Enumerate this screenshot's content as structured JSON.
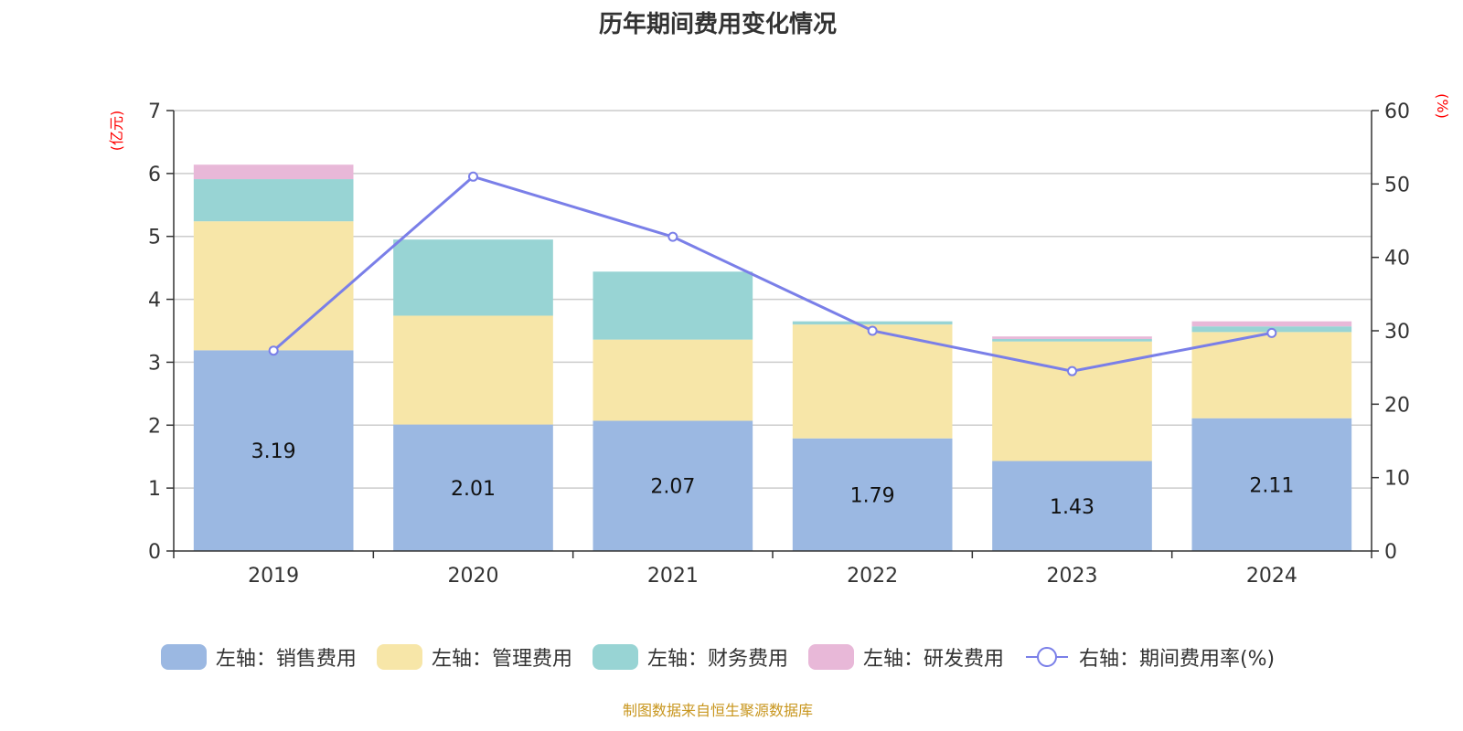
{
  "chart_data": {
    "type": "bar",
    "title": "历年期间费用变化情况",
    "categories": [
      "2019",
      "2020",
      "2021",
      "2022",
      "2023",
      "2024"
    ],
    "left_axis": {
      "unit_label": "(亿元)",
      "ylim": [
        0,
        7
      ],
      "ticks": [
        0,
        1,
        2,
        3,
        4,
        5,
        6,
        7
      ]
    },
    "right_axis": {
      "unit_label": "(%)",
      "ylim": [
        0,
        60
      ],
      "ticks": [
        0,
        10,
        20,
        30,
        40,
        50,
        60
      ]
    },
    "grid": true,
    "legend_position": "bottom",
    "series": [
      {
        "name": "左轴：销售费用",
        "type": "bar",
        "stack": true,
        "axis": "left",
        "color": "#9bb8e2",
        "values": [
          3.19,
          2.01,
          2.07,
          1.79,
          1.43,
          2.11
        ],
        "data_labels": [
          "3.19",
          "2.01",
          "2.07",
          "1.79",
          "1.43",
          "2.11"
        ]
      },
      {
        "name": "左轴：管理费用",
        "type": "bar",
        "stack": true,
        "axis": "left",
        "color": "#f7e6a8",
        "values": [
          2.05,
          1.73,
          1.29,
          1.81,
          1.9,
          1.37
        ]
      },
      {
        "name": "左轴：财务费用",
        "type": "bar",
        "stack": true,
        "axis": "left",
        "color": "#98d4d4",
        "values": [
          0.67,
          1.21,
          1.08,
          0.05,
          0.04,
          0.09
        ]
      },
      {
        "name": "左轴：研发费用",
        "type": "bar",
        "stack": true,
        "axis": "left",
        "color": "#e8b8d8",
        "values": [
          0.23,
          0.0,
          0.0,
          0.0,
          0.04,
          0.08
        ]
      },
      {
        "name": "右轴：期间费用率(%)",
        "type": "line",
        "axis": "right",
        "color": "#7a7fe8",
        "values": [
          27.3,
          51.0,
          42.8,
          30.0,
          24.5,
          29.7
        ]
      }
    ],
    "source_note": "制图数据来自恒生聚源数据库"
  }
}
